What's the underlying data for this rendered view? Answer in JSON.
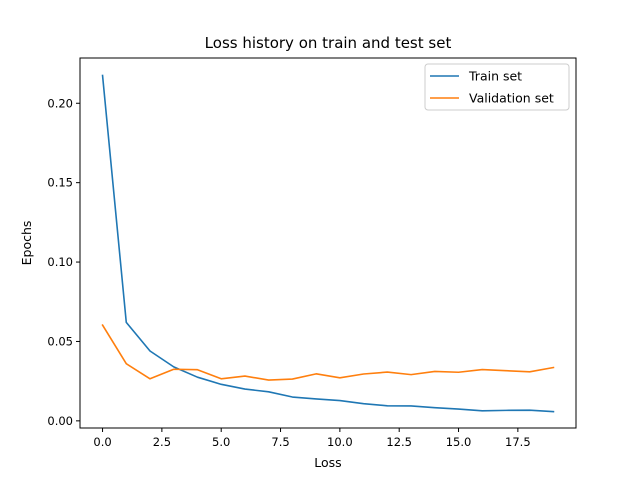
{
  "chart_data": {
    "type": "line",
    "title": "Loss history on train and test set",
    "xlabel": "Loss",
    "ylabel": "Epochs",
    "xlim": [
      -0.95,
      19.95
    ],
    "ylim": [
      -0.0045,
      0.2285
    ],
    "xticks": [
      0,
      2.5,
      5,
      7.5,
      10,
      12.5,
      15,
      17.5
    ],
    "xtick_labels": [
      "0.0",
      "2.5",
      "5.0",
      "7.5",
      "10.0",
      "12.5",
      "15.0",
      "17.5"
    ],
    "yticks": [
      0,
      0.05,
      0.1,
      0.15,
      0.2
    ],
    "ytick_labels": [
      "0.00",
      "0.05",
      "0.10",
      "0.15",
      "0.20"
    ],
    "grid": false,
    "legend_position": "top-right",
    "x": [
      0,
      1,
      2,
      3,
      4,
      5,
      6,
      7,
      8,
      9,
      10,
      11,
      12,
      13,
      14,
      15,
      16,
      17,
      18,
      19
    ],
    "series": [
      {
        "name": "Train set",
        "color": "#1f77b4",
        "values": [
          0.2175,
          0.062,
          0.044,
          0.034,
          0.0275,
          0.023,
          0.02,
          0.0183,
          0.015,
          0.0138,
          0.0128,
          0.0108,
          0.0095,
          0.0094,
          0.0083,
          0.0074,
          0.0063,
          0.0066,
          0.0067,
          0.0058
        ]
      },
      {
        "name": "Validation set",
        "color": "#ff7f0e",
        "values": [
          0.0603,
          0.036,
          0.0265,
          0.0325,
          0.0322,
          0.0265,
          0.0282,
          0.0257,
          0.0263,
          0.0296,
          0.0271,
          0.0295,
          0.0307,
          0.0291,
          0.0311,
          0.0306,
          0.0323,
          0.0316,
          0.0309,
          0.0336
        ]
      }
    ]
  }
}
